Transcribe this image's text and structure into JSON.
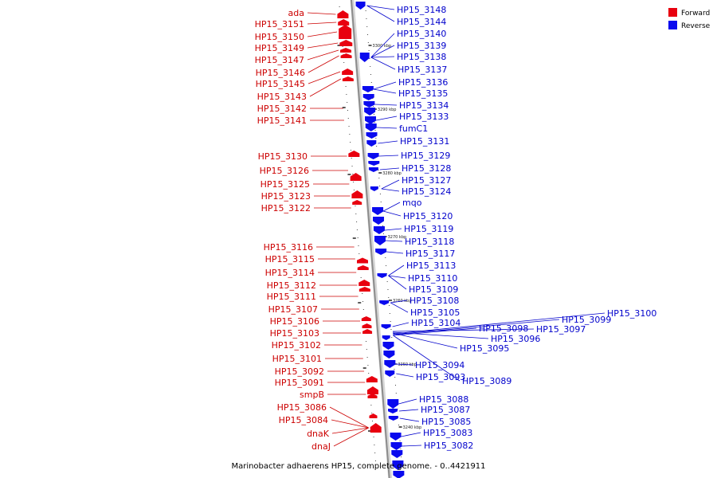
{
  "caption": "Marinobacter adhaerens HP15, complete genome. - 0..4421911",
  "colors": {
    "forward": "#e8000f",
    "reverse": "#0a0aee",
    "forward_label": "#cc0000",
    "reverse_label": "#0000cc",
    "backbone": "#8c8c8c"
  },
  "legend": [
    {
      "label": "Forward",
      "strand": "forward"
    },
    {
      "label": "Reverse",
      "strand": "reverse"
    }
  ],
  "scale_markers": [
    "3300 kbp",
    "3290 kbp",
    "3280 kbp",
    "3270 kbp",
    "3260 kbp",
    "3250 kbp",
    "3240 kbp"
  ],
  "forward_genes": [
    "ada",
    "HP15_3151",
    "HP15_3150",
    "HP15_3149",
    "HP15_3147",
    "HP15_3146",
    "HP15_3145",
    "HP15_3143",
    "HP15_3142",
    "HP15_3141",
    "HP15_3130",
    "HP15_3126",
    "HP15_3125",
    "HP15_3123",
    "HP15_3122",
    "HP15_3116",
    "HP15_3115",
    "HP15_3114",
    "HP15_3112",
    "HP15_3111",
    "HP15_3107",
    "HP15_3106",
    "HP15_3103",
    "HP15_3102",
    "HP15_3101",
    "HP15_3092",
    "HP15_3091",
    "smpB",
    "HP15_3086",
    "HP15_3084",
    "dnaK",
    "dnaJ"
  ],
  "reverse_genes": [
    "HP15_3148",
    "HP15_3144",
    "HP15_3140",
    "HP15_3139",
    "HP15_3138",
    "HP15_3137",
    "HP15_3136",
    "HP15_3135",
    "HP15_3134",
    "HP15_3133",
    "fumC1",
    "HP15_3131",
    "HP15_3129",
    "HP15_3128",
    "HP15_3127",
    "HP15_3124",
    "mqo",
    "HP15_3120",
    "HP15_3119",
    "HP15_3118",
    "HP15_3117",
    "HP15_3113",
    "HP15_3110",
    "HP15_3109",
    "HP15_3108",
    "HP15_3105",
    "HP15_3104",
    "HP15_3100",
    "HP15_3099",
    "HP15_3098",
    "HP15_3097",
    "HP15_3096",
    "HP15_3095",
    "HP15_3094",
    "HP15_3093",
    "HP15_3089",
    "HP15_3088",
    "HP15_3087",
    "HP15_3085",
    "HP15_3083",
    "HP15_3082"
  ]
}
